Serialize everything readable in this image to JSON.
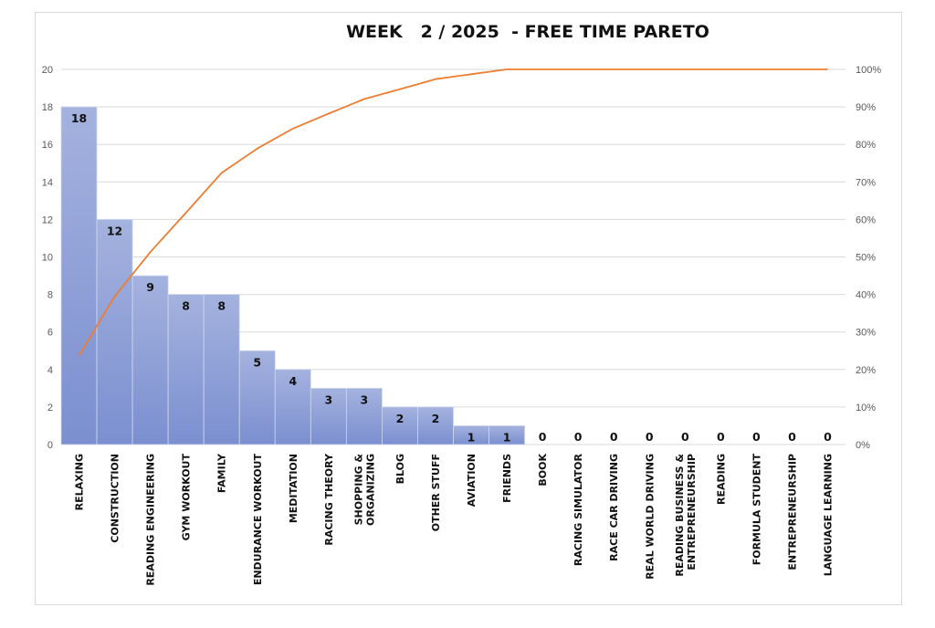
{
  "chart_data": {
    "type": "bar",
    "title": "WEEK   2 / 2025  - FREE TIME PARETO",
    "categories": [
      [
        "RELAXING"
      ],
      [
        "CONSTRUCTION"
      ],
      [
        "READING ENGINEERING"
      ],
      [
        "GYM WORKOUT"
      ],
      [
        "FAMILY"
      ],
      [
        "ENDURANCE WORKOUT"
      ],
      [
        "MEDITATION"
      ],
      [
        "RACING THEORY"
      ],
      [
        "SHOPPING &",
        "ORGANIZING"
      ],
      [
        "BLOG"
      ],
      [
        "OTHER STUFF"
      ],
      [
        "AVIATION"
      ],
      [
        "FRIENDS"
      ],
      [
        "BOOK"
      ],
      [
        "RACING SIMULATOR"
      ],
      [
        "RACE CAR DRIVING"
      ],
      [
        "REAL WORLD DRIVING"
      ],
      [
        "READING BUSINESS &",
        "ENTREPRENEURSHIP"
      ],
      [
        "READING"
      ],
      [
        "FORMULA STUDENT"
      ],
      [
        "ENTREPRENEURSHIP"
      ],
      [
        "LANGUAGE LEARNING"
      ]
    ],
    "values": [
      18,
      12,
      9,
      8,
      8,
      5,
      4,
      3,
      3,
      2,
      2,
      1,
      1,
      0,
      0,
      0,
      0,
      0,
      0,
      0,
      0,
      0
    ],
    "cumulative_percent": [
      23.7,
      39.5,
      51.3,
      61.8,
      72.4,
      78.9,
      84.2,
      88.2,
      92.1,
      94.7,
      97.4,
      98.7,
      100,
      100,
      100,
      100,
      100,
      100,
      100,
      100,
      100,
      100
    ],
    "ylim": [
      0,
      20
    ],
    "yticks": [
      "0",
      "2",
      "4",
      "6",
      "8",
      "10",
      "12",
      "14",
      "16",
      "18",
      "20"
    ],
    "y2lim": [
      0,
      100
    ],
    "y2ticks": [
      "0%",
      "10%",
      "20%",
      "30%",
      "40%",
      "50%",
      "60%",
      "70%",
      "80%",
      "90%",
      "100%"
    ],
    "grid": true,
    "colors": {
      "bar_top": "#a4b2de",
      "bar_bottom": "#7b8fd0",
      "bar_edge": "#d0d8ee",
      "line": "#ed7d31",
      "grid": "#d9d9d9"
    }
  }
}
